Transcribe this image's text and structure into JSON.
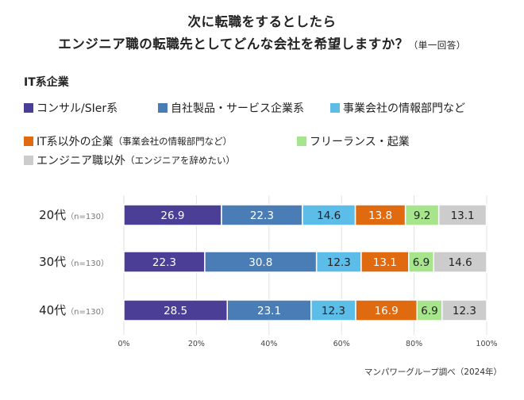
{
  "title": {
    "line1": "次に転職をするとしたら",
    "line2": "エンジニア職の転職先としてどんな会社を希望しますか？",
    "note": "（単一回答）"
  },
  "source": "マンパワーグループ調べ（2024年）",
  "colors": {
    "consul": "#4b3e96",
    "jisha": "#4a7db5",
    "jigyou": "#5bbde8",
    "it_igai": "#e06a10",
    "freelance": "#a7e58d",
    "igai": "#cccccc"
  },
  "legend": {
    "group_label": "IT系企業",
    "items": [
      {
        "label": "コンサル/SIer系",
        "note": ""
      },
      {
        "label": "自社製品・サービス企業系",
        "note": ""
      },
      {
        "label": "事業会社の情報部門など",
        "note": ""
      },
      {
        "label": "IT系以外の企業",
        "note": "（事業会社の情報部門など）"
      },
      {
        "label": "フリーランス・起業",
        "note": ""
      },
      {
        "label": "エンジニア職以外",
        "note": "（エンジニアを辞めたい）"
      }
    ]
  },
  "chart_data": {
    "type": "bar",
    "orientation": "horizontal",
    "stacked": true,
    "categories": [
      "20代",
      "30代",
      "40代"
    ],
    "category_notes": [
      "（n=130）",
      "（n=130）",
      "（n=130）"
    ],
    "series": [
      {
        "name": "コンサル/SIer系",
        "values": [
          26.9,
          22.3,
          28.5
        ]
      },
      {
        "name": "自社製品・サービス企業系",
        "values": [
          22.3,
          30.8,
          23.1
        ]
      },
      {
        "name": "事業会社の情報部門など",
        "values": [
          14.6,
          12.3,
          12.3
        ]
      },
      {
        "name": "IT系以外の企業（事業会社の情報部門など）",
        "values": [
          13.8,
          13.1,
          16.9
        ]
      },
      {
        "name": "フリーランス・起業",
        "values": [
          9.2,
          6.9,
          6.9
        ]
      },
      {
        "name": "エンジニア職以外（エンジニアを辞めたい）",
        "values": [
          13.1,
          14.6,
          12.3
        ]
      }
    ],
    "xlim": [
      0,
      100
    ],
    "xticks": [
      "0%",
      "20%",
      "40%",
      "60%",
      "80%",
      "100%"
    ],
    "grid": "vertical"
  }
}
